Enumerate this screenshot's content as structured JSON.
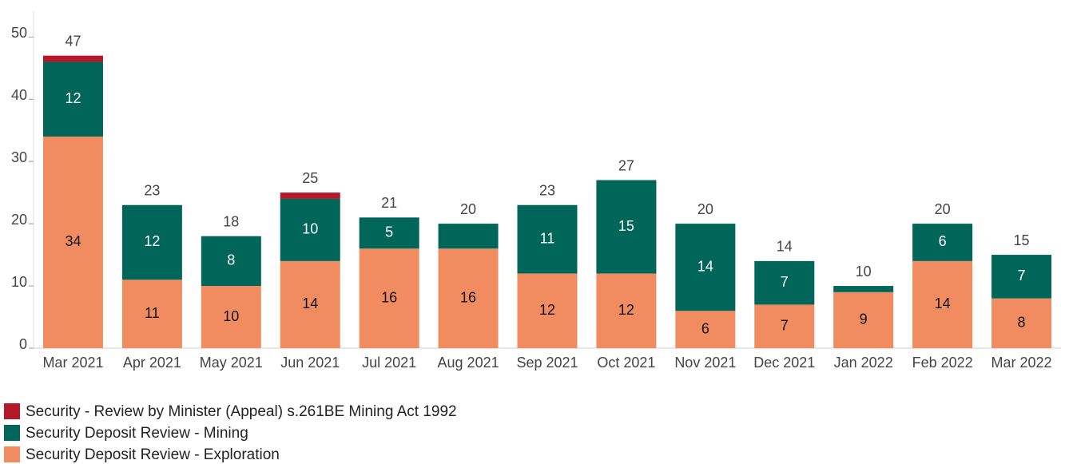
{
  "chart_data": {
    "type": "stacked_bar",
    "categories": [
      "Mar 2021",
      "Apr 2021",
      "May 2021",
      "Jun 2021",
      "Jul 2021",
      "Aug 2021",
      "Sep 2021",
      "Oct 2021",
      "Nov 2021",
      "Dec 2021",
      "Jan 2022",
      "Feb 2022",
      "Mar 2022"
    ],
    "series": [
      {
        "name": "Security Deposit Review - Exploration",
        "color": "#f08c60",
        "label_color": "#111111",
        "values": [
          34,
          11,
          10,
          14,
          16,
          16,
          12,
          12,
          6,
          7,
          9,
          14,
          8
        ]
      },
      {
        "name": "Security Deposit Review - Mining",
        "color": "#00665a",
        "label_color": "#ffffff",
        "values": [
          12,
          12,
          8,
          10,
          5,
          4,
          11,
          15,
          14,
          7,
          1,
          6,
          7
        ]
      },
      {
        "name": "Security - Review by Minister (Appeal) s.261BE Mining Act 1992",
        "color": "#b5172b",
        "label_color": "#ffffff",
        "values": [
          1,
          null,
          null,
          1,
          null,
          null,
          null,
          null,
          null,
          null,
          null,
          null,
          null
        ]
      }
    ],
    "totals": [
      47,
      23,
      18,
      25,
      21,
      20,
      23,
      27,
      20,
      14,
      10,
      20,
      15
    ],
    "ylim": [
      0,
      53.5
    ],
    "yticks": [
      0,
      10,
      20,
      30,
      40,
      50
    ],
    "grid": false
  }
}
